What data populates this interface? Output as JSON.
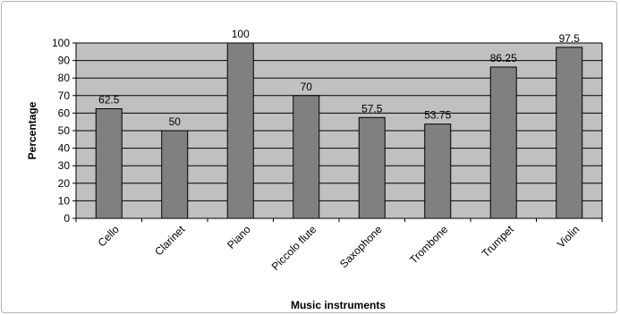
{
  "chart_data": {
    "type": "bar",
    "title": "",
    "xlabel": "Music instruments",
    "ylabel": "Percentage",
    "categories": [
      "Cello",
      "Clarinet",
      "Piano",
      "Piccolo flute",
      "Saxophone",
      "Trombone",
      "Trumpet",
      "Violin"
    ],
    "values": [
      62.5,
      50,
      100,
      70,
      57.5,
      53.75,
      86.25,
      97.5
    ],
    "data_labels": [
      "62.5",
      "50",
      "100",
      "70",
      "57.5",
      "53.75",
      "86.25",
      "97.5"
    ],
    "ylim": [
      0,
      100
    ],
    "yticks": [
      0,
      10,
      20,
      30,
      40,
      50,
      60,
      70,
      80,
      90,
      100
    ],
    "grid": true,
    "legend": "none",
    "colors": {
      "plot_background": "#c0c0c0",
      "bar_fill": "#808080",
      "bar_stroke": "#000000",
      "gridline": "#000000"
    }
  }
}
